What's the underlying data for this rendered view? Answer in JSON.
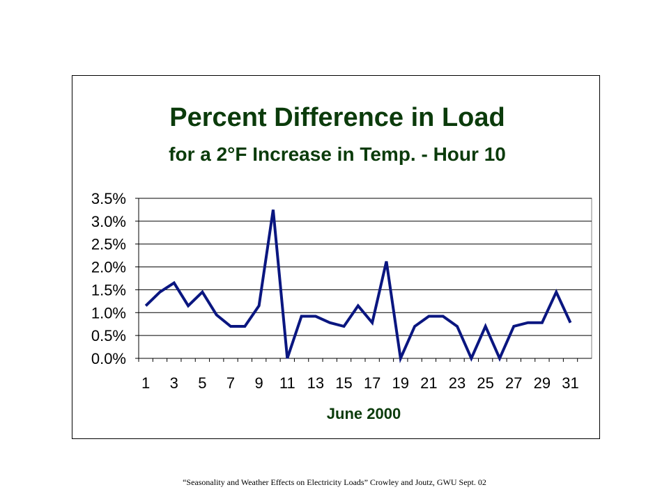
{
  "footer": "“Seasonality and Weather Effects on Electricity  Loads” Crowley  and Joutz, GWU Sept. 02",
  "colors": {
    "title": "#0b3b0b",
    "line": "#0a1680",
    "grid": "#000000",
    "plot_bg": "#ffffff"
  },
  "chart_data": {
    "type": "line",
    "title": "Percent Difference in Load",
    "subtitle": "for a 2°F Increase in Temp. - Hour 10",
    "xlabel": "June 2000",
    "ylabel": "",
    "x": [
      1,
      2,
      3,
      4,
      5,
      6,
      7,
      8,
      9,
      10,
      11,
      12,
      13,
      14,
      15,
      16,
      17,
      18,
      19,
      20,
      21,
      22,
      23,
      24,
      25,
      26,
      27,
      28,
      29,
      30,
      31
    ],
    "xticks": [
      "1",
      "3",
      "5",
      "7",
      "9",
      "11",
      "13",
      "15",
      "17",
      "19",
      "21",
      "23",
      "25",
      "27",
      "29",
      "31"
    ],
    "yticks": [
      "0.0%",
      "0.5%",
      "1.0%",
      "1.5%",
      "2.0%",
      "2.5%",
      "3.0%",
      "3.5%"
    ],
    "ylim": [
      0,
      3.5
    ],
    "xlim": [
      0.5,
      32.5
    ],
    "grid": true,
    "series": [
      {
        "values": [
          1.15,
          1.45,
          1.65,
          1.15,
          1.45,
          0.95,
          0.7,
          0.7,
          1.15,
          3.25,
          0.0,
          0.92,
          0.92,
          0.78,
          0.7,
          1.15,
          0.78,
          2.12,
          0.0,
          0.7,
          0.92,
          0.92,
          0.7,
          0.0,
          0.7,
          0.0,
          0.7,
          0.78,
          0.78,
          1.45,
          0.78
        ]
      }
    ]
  }
}
